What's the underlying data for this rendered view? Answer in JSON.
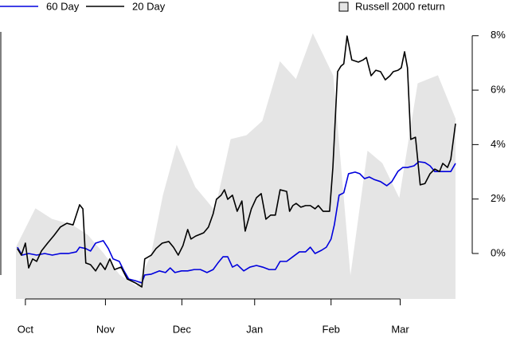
{
  "chart_data": {
    "type": "line",
    "xlim": [
      -2.6,
      118.2
    ],
    "xticks": [
      {
        "value": 0,
        "label": "Oct"
      },
      {
        "value": 22,
        "label": "Nov"
      },
      {
        "value": 43,
        "label": "Dec"
      },
      {
        "value": 63,
        "label": "Jan"
      },
      {
        "value": 84,
        "label": "Feb"
      },
      {
        "value": 103,
        "label": "Mar"
      }
    ],
    "y2lim": [
      -1.67,
      8.14
    ],
    "y2ticks": [
      {
        "value": 0,
        "label": "0%"
      },
      {
        "value": 2,
        "label": "2%"
      },
      {
        "value": 4,
        "label": "4%"
      },
      {
        "value": 6,
        "label": "6%"
      },
      {
        "value": 8,
        "label": "8%"
      }
    ],
    "series": [
      {
        "name": "Russell 2000 return",
        "style": "area",
        "color": "#e5e5e5",
        "axis": "y2",
        "x": [
          -2.6,
          2.8,
          7.2,
          12.7,
          17.1,
          21.4,
          25.8,
          30.6,
          34.6,
          37.9,
          41.6,
          46.6,
          52.1,
          56.5,
          60.8,
          65.2,
          70.0,
          74.4,
          79.0,
          84.5,
          89.3,
          94.1,
          98.0,
          102.8,
          107.9,
          113.3,
          118.2
        ],
        "values": [
          0.2,
          1.64,
          1.26,
          1.05,
          0.67,
          0.0,
          -0.79,
          -1.23,
          -0.06,
          2.14,
          3.95,
          2.43,
          1.55,
          4.19,
          4.33,
          4.86,
          7.03,
          6.38,
          8.05,
          6.53,
          -0.94,
          3.75,
          3.31,
          1.99,
          6.24,
          6.53,
          4.92
        ]
      },
      {
        "name": "60 Day",
        "style": "line",
        "color": "#0000dd",
        "axis": "y2",
        "x": [
          -2.2,
          -0.9,
          0.9,
          3.1,
          5.3,
          7.4,
          9.6,
          11.8,
          14.0,
          14.9,
          16.6,
          17.9,
          19.3,
          21.4,
          22.8,
          24.1,
          25.8,
          27.1,
          28.4,
          30.2,
          32.0,
          32.8,
          34.6,
          36.8,
          38.5,
          39.8,
          41.1,
          42.9,
          44.6,
          46.4,
          48.1,
          49.9,
          51.6,
          52.9,
          54.3,
          55.6,
          56.9,
          58.2,
          60.0,
          61.7,
          63.5,
          65.2,
          67.0,
          68.7,
          70.0,
          71.8,
          73.5,
          75.3,
          77.0,
          78.3,
          79.6,
          81.4,
          82.7,
          84.0,
          84.9,
          86.2,
          87.5,
          88.8,
          90.6,
          91.9,
          93.2,
          94.5,
          95.8,
          97.6,
          99.3,
          100.7,
          102.4,
          103.7,
          105.0,
          106.8,
          108.1,
          109.8,
          111.2,
          112.5,
          114.7,
          116.9,
          118.2
        ],
        "values": [
          0.23,
          -0.06,
          0.0,
          -0.06,
          0.0,
          -0.06,
          0.0,
          0.0,
          0.06,
          0.23,
          0.18,
          0.09,
          0.38,
          0.47,
          0.18,
          -0.2,
          -0.29,
          -0.64,
          -0.94,
          -1.0,
          -1.08,
          -0.79,
          -0.76,
          -0.64,
          -0.7,
          -0.53,
          -0.7,
          -0.64,
          -0.64,
          -0.59,
          -0.59,
          -0.7,
          -0.59,
          -0.35,
          -0.12,
          -0.12,
          -0.5,
          -0.41,
          -0.64,
          -0.5,
          -0.44,
          -0.5,
          -0.59,
          -0.59,
          -0.29,
          -0.29,
          -0.12,
          0.06,
          0.06,
          0.23,
          0.0,
          0.12,
          0.23,
          0.53,
          1.05,
          2.14,
          2.23,
          2.93,
          2.99,
          2.93,
          2.75,
          2.81,
          2.72,
          2.64,
          2.49,
          2.64,
          3.02,
          3.16,
          3.16,
          3.22,
          3.37,
          3.34,
          3.22,
          3.01,
          3.01,
          3.01,
          3.31
        ]
      },
      {
        "name": "20 Day",
        "style": "line",
        "color": "#000000",
        "axis": "y2",
        "x": [
          -2.2,
          -1.1,
          0,
          0.9,
          2.0,
          3.1,
          4.4,
          6.1,
          7.9,
          9.6,
          11.4,
          13.1,
          14.9,
          15.8,
          16.6,
          17.9,
          19.3,
          20.6,
          21.9,
          23.2,
          24.5,
          26.3,
          28.0,
          30.2,
          32.0,
          32.8,
          34.6,
          35.9,
          37.6,
          39.4,
          40.7,
          42.0,
          43.3,
          44.6,
          45.5,
          46.8,
          49.0,
          50.3,
          51.6,
          52.5,
          53.8,
          54.7,
          55.6,
          56.9,
          58.2,
          59.5,
          60.4,
          62.1,
          63.5,
          64.8,
          66.1,
          67.4,
          68.7,
          70.0,
          71.8,
          72.6,
          73.5,
          74.4,
          75.7,
          77.0,
          78.3,
          79.6,
          80.5,
          81.8,
          83.6,
          84.5,
          85.8,
          86.7,
          87.5,
          88.4,
          89.7,
          91.5,
          92.8,
          93.7,
          95.0,
          96.3,
          97.6,
          98.9,
          100.2,
          101.1,
          102.4,
          103.3,
          104.2,
          105.0,
          105.9,
          107.2,
          108.5,
          109.8,
          111.2,
          112.5,
          113.8,
          114.7,
          116.0,
          116.9,
          118.2
        ],
        "values": [
          0.18,
          -0.06,
          0.38,
          -0.53,
          -0.2,
          -0.29,
          0.09,
          0.38,
          0.67,
          0.97,
          1.11,
          1.05,
          1.79,
          1.64,
          -0.35,
          -0.41,
          -0.64,
          -0.35,
          -0.59,
          -0.2,
          -0.59,
          -0.5,
          -0.94,
          -1.08,
          -1.23,
          -0.2,
          -0.06,
          0.18,
          0.38,
          0.44,
          0.23,
          -0.06,
          0.29,
          0.88,
          0.53,
          0.64,
          0.76,
          0.97,
          1.46,
          1.99,
          2.14,
          2.34,
          1.99,
          2.14,
          1.55,
          1.93,
          0.82,
          1.64,
          2.05,
          2.2,
          1.26,
          1.41,
          1.41,
          2.34,
          2.28,
          1.55,
          1.76,
          1.84,
          1.7,
          1.76,
          1.76,
          1.64,
          1.76,
          1.55,
          1.55,
          3.16,
          6.68,
          6.88,
          6.97,
          7.99,
          7.11,
          7.03,
          7.11,
          7.2,
          6.53,
          6.73,
          6.68,
          6.38,
          6.53,
          6.68,
          6.73,
          6.82,
          7.41,
          6.82,
          4.19,
          4.27,
          2.52,
          2.57,
          2.93,
          3.1,
          3.01,
          3.31,
          3.16,
          3.46,
          4.77
        ]
      }
    ]
  }
}
